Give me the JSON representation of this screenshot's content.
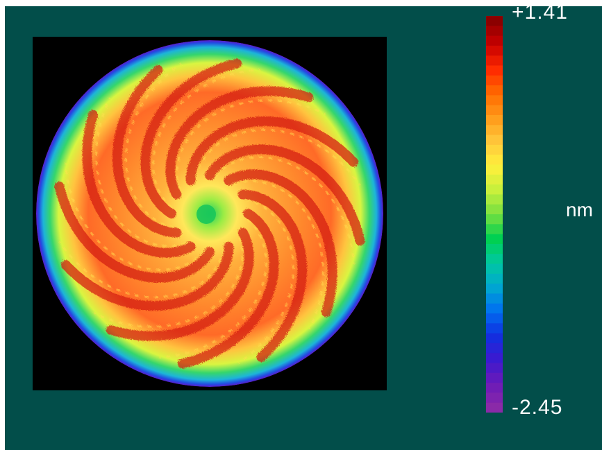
{
  "chart_data": {
    "type": "heatmap",
    "title": "",
    "subtitle": "",
    "xlabel": "",
    "ylabel": "",
    "unit": "nm",
    "colorbar": {
      "max_label": "+1.41",
      "min_label": "-2.45",
      "max": 1.41,
      "min": -2.45,
      "colormap": [
        "#8b0000",
        "#c80000",
        "#ff2a00",
        "#ff6a00",
        "#ff9a1a",
        "#ffc83c",
        "#fff03c",
        "#c8f03c",
        "#78e040",
        "#00d050",
        "#00c8a0",
        "#00a8d0",
        "#0070f0",
        "#1030e0",
        "#3a1ad0",
        "#6a1ab8",
        "#8a2aa8"
      ]
    },
    "surface": {
      "description_values": {
        "center_region": 0.0,
        "spiral_ridges": 1.2,
        "main_annulus": 0.7,
        "outer_edge": -2.4
      },
      "spiral_arm_count": 12,
      "background": "#000000"
    }
  },
  "colors": {
    "panel_background": "#024e4a",
    "label_color": "#ffffff"
  }
}
